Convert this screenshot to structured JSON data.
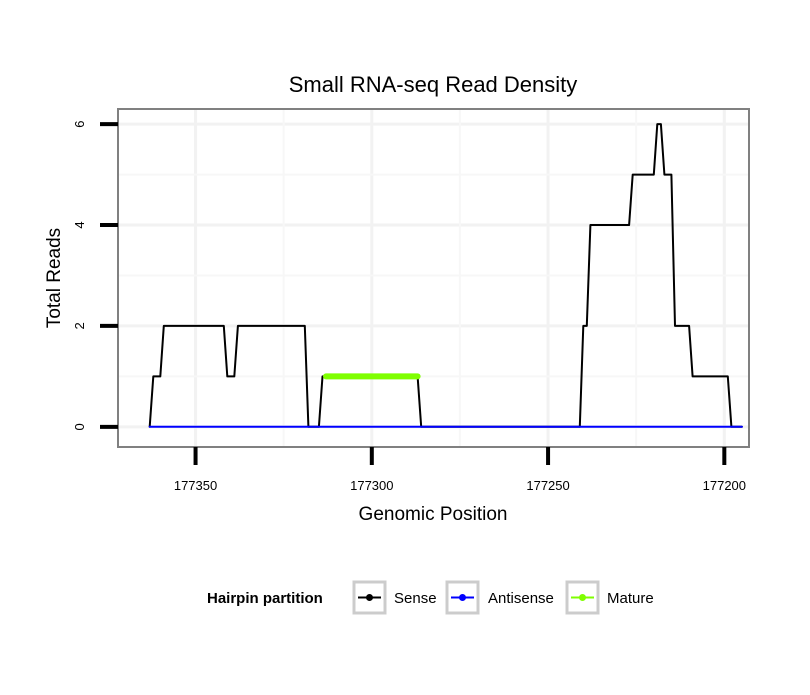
{
  "chart_data": {
    "type": "line",
    "title": "Small RNA-seq Read Density",
    "xlabel": "Genomic Position",
    "ylabel": "Total Reads",
    "x_reversed": true,
    "xlim": [
      177372,
      177193
    ],
    "ylim": [
      -0.4,
      6.3
    ],
    "x_ticks": [
      177350,
      177300,
      177250,
      177200
    ],
    "x_tick_labels": [
      "177350",
      "177300",
      "177250",
      "177200"
    ],
    "y_ticks": [
      0,
      2,
      4,
      6
    ],
    "y_tick_labels": [
      "0",
      "2",
      "4",
      "6"
    ],
    "grid": true,
    "legend": {
      "title": "Hairpin partition",
      "position": "bottom",
      "entries": [
        {
          "name": "Sense",
          "color": "#000000"
        },
        {
          "name": "Antisense",
          "color": "#0000ff"
        },
        {
          "name": "Mature",
          "color": "#7fff00"
        }
      ]
    },
    "series": [
      {
        "name": "Sense",
        "color": "#000000",
        "points": [
          [
            177363,
            0
          ],
          [
            177362,
            1
          ],
          [
            177360,
            1
          ],
          [
            177359,
            2
          ],
          [
            177342,
            2
          ],
          [
            177341,
            1
          ],
          [
            177339,
            1
          ],
          [
            177338,
            2
          ],
          [
            177319,
            2
          ],
          [
            177318,
            0
          ],
          [
            177315,
            0
          ],
          [
            177314,
            1
          ],
          [
            177287,
            1
          ],
          [
            177286,
            0
          ],
          [
            177241,
            0
          ],
          [
            177240,
            2
          ],
          [
            177239,
            2
          ],
          [
            177238,
            4
          ],
          [
            177227,
            4
          ],
          [
            177226,
            5
          ],
          [
            177220,
            5
          ],
          [
            177219,
            6
          ],
          [
            177218,
            6
          ],
          [
            177217,
            5
          ],
          [
            177215,
            5
          ],
          [
            177214,
            2
          ],
          [
            177210,
            2
          ],
          [
            177209,
            1
          ],
          [
            177199,
            1
          ],
          [
            177198,
            0
          ],
          [
            177195,
            0
          ]
        ]
      },
      {
        "name": "Antisense",
        "color": "#0000ff",
        "points": [
          [
            177363,
            0
          ],
          [
            177195,
            0
          ]
        ]
      },
      {
        "name": "Mature",
        "color": "#7fff00",
        "points": [
          [
            177313,
            1
          ],
          [
            177287,
            1
          ]
        ]
      }
    ]
  }
}
